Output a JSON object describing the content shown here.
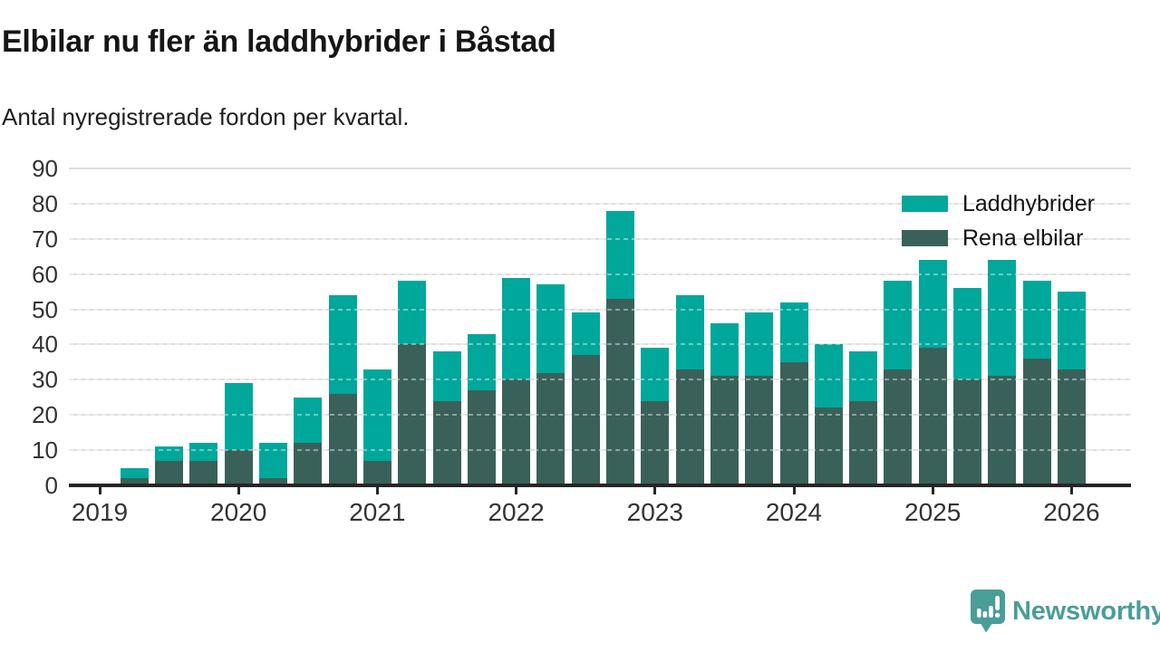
{
  "header": {
    "title": "Elbilar nu fler än laddhybrider i Båstad",
    "subtitle": "Antal nyregistrerade fordon per kvartal."
  },
  "legend": {
    "items": [
      {
        "label": "Laddhybrider",
        "color": "#00a79b"
      },
      {
        "label": "Rena elbilar",
        "color": "#3a6159"
      }
    ]
  },
  "footer": {
    "brand": "Newsworthy",
    "brand_color": "#4a9d98",
    "logo_icon": "bar-chart-speech-bubble-icon"
  },
  "colors": {
    "laddhybrider": "#00a79b",
    "rena_elbilar": "#3a6159",
    "gridline": "#dedede",
    "axis": "#262626",
    "axis_text": "#333333"
  },
  "chart_data": {
    "type": "bar",
    "stacked": true,
    "title": "Elbilar nu fler än laddhybrider i Båstad",
    "subtitle": "Antal nyregistrerade fordon per kvartal.",
    "xlabel": "",
    "ylabel": "",
    "ylim": [
      0,
      90
    ],
    "y_ticks": [
      0,
      10,
      20,
      30,
      40,
      50,
      60,
      70,
      80,
      90
    ],
    "grid": "horizontal",
    "legend_position": "top-right",
    "categories": [
      "2019 Q1",
      "2019 Q2",
      "2019 Q3",
      "2019 Q4",
      "2020 Q1",
      "2020 Q2",
      "2020 Q3",
      "2020 Q4",
      "2021 Q1",
      "2021 Q2",
      "2021 Q3",
      "2021 Q4",
      "2022 Q1",
      "2022 Q2",
      "2022 Q3",
      "2022 Q4",
      "2023 Q1",
      "2023 Q2",
      "2023 Q3",
      "2023 Q4",
      "2024 Q1",
      "2024 Q2",
      "2024 Q3",
      "2024 Q4",
      "2025 Q1",
      "2025 Q2",
      "2025 Q3",
      "2025 Q4",
      "2026 Q1"
    ],
    "series": [
      {
        "name": "Rena elbilar",
        "color": "#3a6159",
        "values": [
          0,
          2,
          7,
          7,
          10,
          2,
          12,
          26,
          7,
          40,
          24,
          27,
          30,
          32,
          37,
          53,
          24,
          33,
          31,
          31,
          35,
          22,
          24,
          33,
          39,
          30,
          31,
          36,
          33
        ]
      },
      {
        "name": "Laddhybrider",
        "color": "#00a79b",
        "values": [
          0,
          3,
          4,
          5,
          19,
          10,
          13,
          28,
          26,
          18,
          14,
          16,
          29,
          25,
          12,
          25,
          15,
          21,
          15,
          18,
          17,
          18,
          14,
          25,
          25,
          26,
          33,
          22,
          22
        ]
      }
    ],
    "totals": [
      0,
      5,
      11,
      12,
      29,
      12,
      25,
      54,
      33,
      58,
      38,
      43,
      59,
      57,
      49,
      78,
      39,
      54,
      46,
      49,
      52,
      40,
      38,
      58,
      64,
      56,
      64,
      58,
      55
    ],
    "x_axis_year_labels": [
      "2019",
      "2020",
      "2021",
      "2022",
      "2023",
      "2024",
      "2025",
      "2026"
    ]
  }
}
